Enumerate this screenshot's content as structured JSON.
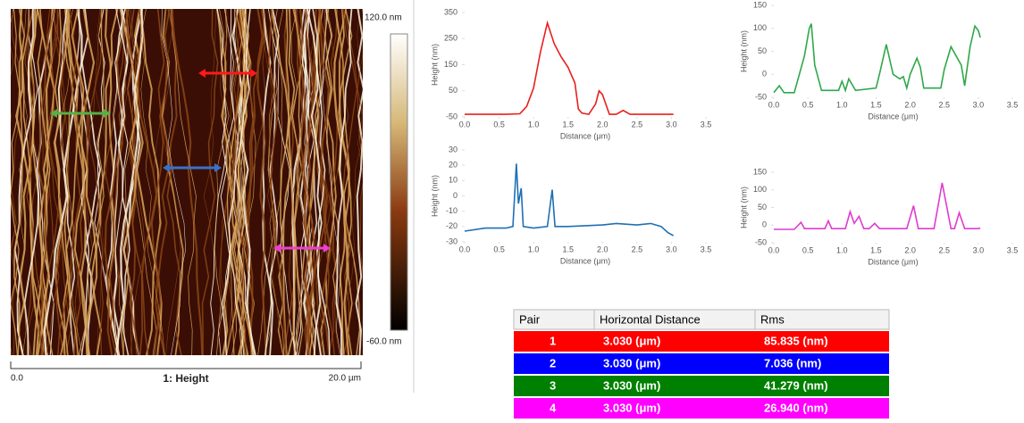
{
  "chart_data": [
    {
      "type": "line",
      "xlabel": "Distance (μm)",
      "ylabel": "Height (nm)",
      "color": "#e8201c",
      "xlim": [
        0,
        3.5
      ],
      "xticks": [
        {
          "value": 0,
          "label": "0.0"
        },
        0.5,
        {
          "value": 1,
          "label": "1.0"
        },
        1.5,
        {
          "value": 2,
          "label": "2.0"
        },
        2.5,
        {
          "value": 3,
          "label": "3.0"
        },
        3.5
      ],
      "ylim": [
        -50,
        350
      ],
      "yticks": [
        -50,
        50,
        150,
        250,
        350
      ],
      "x": [
        0,
        0.2,
        0.4,
        0.6,
        0.8,
        0.9,
        1.0,
        1.1,
        1.2,
        1.3,
        1.4,
        1.5,
        1.6,
        1.65,
        1.7,
        1.8,
        1.9,
        1.95,
        2.0,
        2.1,
        2.2,
        2.3,
        2.4,
        2.6,
        2.8,
        3.03
      ],
      "values": [
        -40,
        -40,
        -40,
        -40,
        -38,
        -10,
        60,
        200,
        310,
        230,
        180,
        140,
        80,
        -20,
        -35,
        -40,
        0,
        50,
        35,
        -40,
        -40,
        -25,
        -40,
        -40,
        -40,
        -40
      ]
    },
    {
      "type": "line",
      "xlabel": "Distance (μm)",
      "ylabel": "Height (nm)",
      "color": "#2ea84a",
      "xlim": [
        0,
        3.5
      ],
      "xticks": [
        {
          "value": 0,
          "label": "0.0"
        },
        0.5,
        {
          "value": 1,
          "label": "1.0"
        },
        1.5,
        {
          "value": 2,
          "label": "2.0"
        },
        2.5,
        {
          "value": 3,
          "label": "3.0"
        },
        3.5
      ],
      "ylim": [
        -50,
        150
      ],
      "yticks": [
        -50,
        0,
        50,
        100,
        150
      ],
      "x": [
        0,
        0.08,
        0.15,
        0.3,
        0.45,
        0.52,
        0.55,
        0.6,
        0.7,
        0.95,
        1.0,
        1.05,
        1.1,
        1.2,
        1.5,
        1.55,
        1.65,
        1.75,
        1.85,
        1.9,
        1.95,
        2.0,
        2.1,
        2.15,
        2.2,
        2.45,
        2.5,
        2.6,
        2.75,
        2.8,
        2.88,
        2.95,
        3.0,
        3.03
      ],
      "values": [
        -40,
        -25,
        -40,
        -40,
        40,
        100,
        110,
        20,
        -35,
        -35,
        -15,
        -35,
        -10,
        -35,
        -30,
        0,
        65,
        0,
        -10,
        -5,
        -30,
        0,
        35,
        15,
        -30,
        -30,
        10,
        60,
        20,
        -25,
        60,
        105,
        95,
        80
      ]
    },
    {
      "type": "line",
      "xlabel": "Distance (μm)",
      "ylabel": "Height (nm)",
      "color": "#1f6fb5",
      "xlim": [
        0,
        3.5
      ],
      "xticks": [
        {
          "value": 0,
          "label": "0.0"
        },
        0.5,
        {
          "value": 1,
          "label": "1.0"
        },
        1.5,
        {
          "value": 2,
          "label": "2.0"
        },
        2.5,
        {
          "value": 3,
          "label": "3.0"
        },
        3.5
      ],
      "ylim": [
        -30,
        30
      ],
      "yticks": [
        -30,
        -20,
        -10,
        0,
        10,
        20,
        30
      ],
      "x": [
        0,
        0.3,
        0.6,
        0.7,
        0.75,
        0.78,
        0.82,
        0.85,
        1.0,
        1.2,
        1.27,
        1.31,
        1.5,
        2.0,
        2.2,
        2.5,
        2.7,
        2.85,
        2.95,
        3.03
      ],
      "values": [
        -23,
        -21,
        -21,
        -20,
        21,
        -5,
        5,
        -20,
        -21,
        -20,
        4,
        -20,
        -20,
        -19,
        -18,
        -19,
        -18,
        -20,
        -24,
        -26
      ]
    },
    {
      "type": "line",
      "xlabel": "Distance (μm)",
      "ylabel": "Height (nm)",
      "color": "#e03ad0",
      "xlim": [
        0,
        3.5
      ],
      "xticks": [
        {
          "value": 0,
          "label": "0.0"
        },
        0.5,
        {
          "value": 1,
          "label": "1.0"
        },
        1.5,
        {
          "value": 2,
          "label": "2.0"
        },
        2.5,
        {
          "value": 3,
          "label": "3.0"
        },
        3.5
      ],
      "ylim": [
        -50,
        150
      ],
      "yticks": [
        -50,
        0,
        50,
        100,
        150
      ],
      "x": [
        0,
        0.3,
        0.4,
        0.45,
        0.75,
        0.8,
        0.85,
        1.05,
        1.12,
        1.18,
        1.25,
        1.32,
        1.4,
        1.48,
        1.55,
        1.95,
        2.05,
        2.12,
        2.35,
        2.47,
        2.6,
        2.65,
        2.72,
        2.8,
        3.0,
        3.03
      ],
      "values": [
        -12,
        -12,
        8,
        -10,
        -10,
        12,
        -10,
        -10,
        38,
        5,
        25,
        -10,
        -10,
        5,
        -10,
        -10,
        55,
        -10,
        -10,
        120,
        -10,
        -10,
        35,
        -10,
        -10,
        -8
      ]
    }
  ],
  "image": {
    "caption": "1: Height",
    "scale_start": "0.0",
    "scale_end": "20.0 µm",
    "colorbar_max": "120.0 nm",
    "colorbar_min": "-60.0 nm"
  },
  "table": {
    "columns": [
      "Pair",
      "Horizontal Distance",
      "Rms"
    ],
    "rows": [
      {
        "color": "#ff0000",
        "cells": [
          "1",
          "3.030 (μm)",
          "85.835 (nm)"
        ]
      },
      {
        "color": "#0000ff",
        "cells": [
          "2",
          "3.030 (μm)",
          "7.036 (nm)"
        ]
      },
      {
        "color": "#008000",
        "cells": [
          "3",
          "3.030 (μm)",
          "41.279 (nm)"
        ]
      },
      {
        "color": "#ff00ff",
        "cells": [
          "4",
          "3.030 (μm)",
          "26.940 (nm)"
        ]
      }
    ]
  }
}
